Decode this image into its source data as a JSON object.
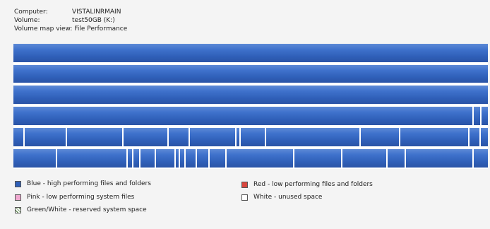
{
  "info": {
    "computer_label": "Computer:",
    "computer_value": "VISTALINRMAIN",
    "volume_label": "Volume:",
    "volume_value": "test50GB (K:)",
    "view_label": "Volume map view:",
    "view_value": "File Performance"
  },
  "legend": [
    {
      "id": "blue",
      "label": "Blue - high performing files and folders",
      "color": "#2f5fb8"
    },
    {
      "id": "red",
      "label": "Red - low performing files and folders",
      "color": "#d9473f"
    },
    {
      "id": "pink",
      "label": "Pink - low performing system files",
      "color": "#f0a8d0"
    },
    {
      "id": "white",
      "label": "White - unused space",
      "color": "#ffffff"
    },
    {
      "id": "green",
      "label": "Green/White - reserved system space",
      "color": "#4a7a3a"
    }
  ],
  "colors": {
    "blue": "#2f5fb8",
    "free": "#ffffff"
  }
}
